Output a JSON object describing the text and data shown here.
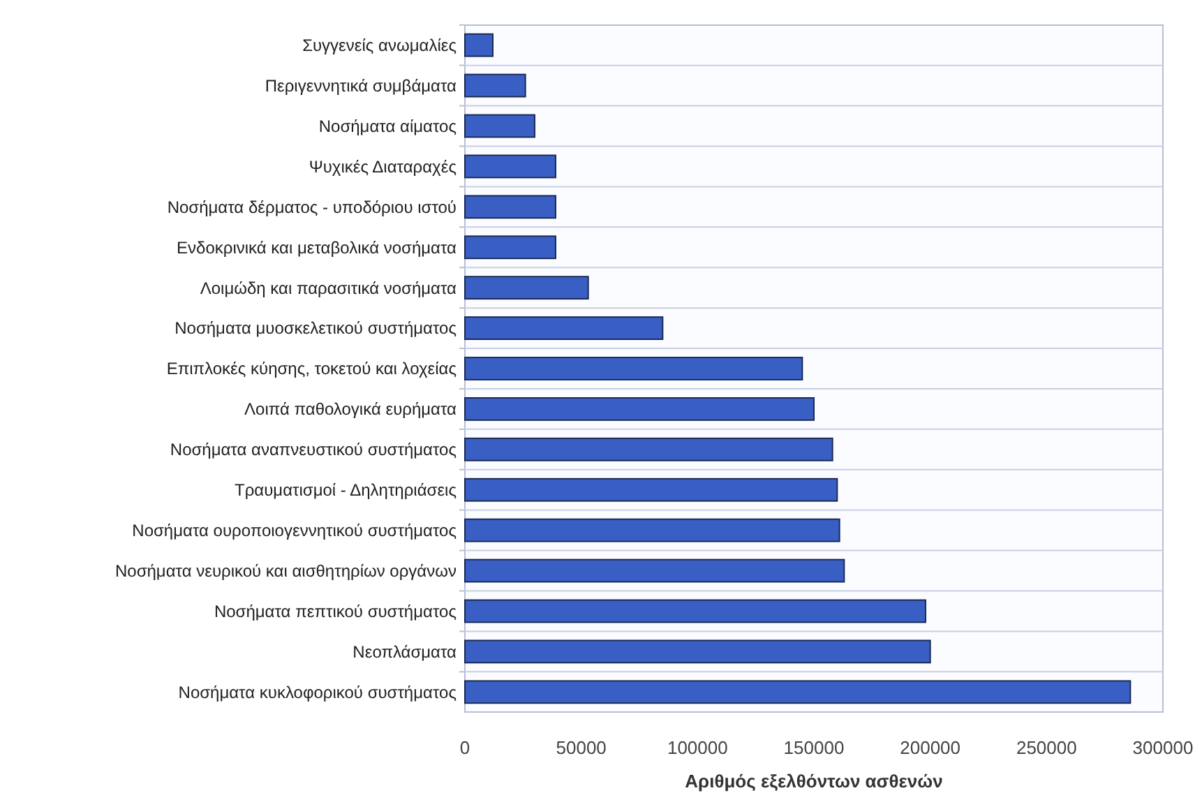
{
  "chart_data": {
    "type": "bar",
    "orientation": "horizontal",
    "categories": [
      "Συγγενείς ανωμαλίες",
      "Περιγεννητικά συμβάματα",
      "Νοσήματα αίματος",
      "Ψυχικές Διαταραχές",
      "Νοσήματα δέρματος - υποδόριου ιστού",
      "Ενδοκρινικά και μεταβολικά νοσήματα",
      "Λοιμώδη και παρασιτικά νοσήματα",
      "Νοσήματα μυοσκελετικού συστήματος",
      "Επιπλοκές κύησης, τοκετού και λοχείας",
      "Λοιπά παθολογικά ευρήματα",
      "Νοσήματα αναπνευστικού συστήματος",
      "Τραυματισμοί - Δηλητηριάσεις",
      "Νοσήματα ουροποιογεννητικού συστήματος",
      "Νοσήματα νευρικού και αισθητηρίων οργάνων",
      "Νοσήματα πεπτικού συστήματος",
      "Νεοπλάσματα",
      "Νοσήματα κυκλοφορικού συστήματος"
    ],
    "values": [
      12000,
      26000,
      30000,
      39000,
      39000,
      39000,
      53000,
      85000,
      145000,
      150000,
      158000,
      160000,
      161000,
      163000,
      198000,
      200000,
      286000
    ],
    "color": "#3a5fc4",
    "xlim": [
      0,
      300000
    ],
    "xticks": [
      0,
      50000,
      100000,
      150000,
      200000,
      250000,
      300000
    ],
    "xlabel": "Αριθμός εξελθόντων ασθενών",
    "grid": "y"
  }
}
